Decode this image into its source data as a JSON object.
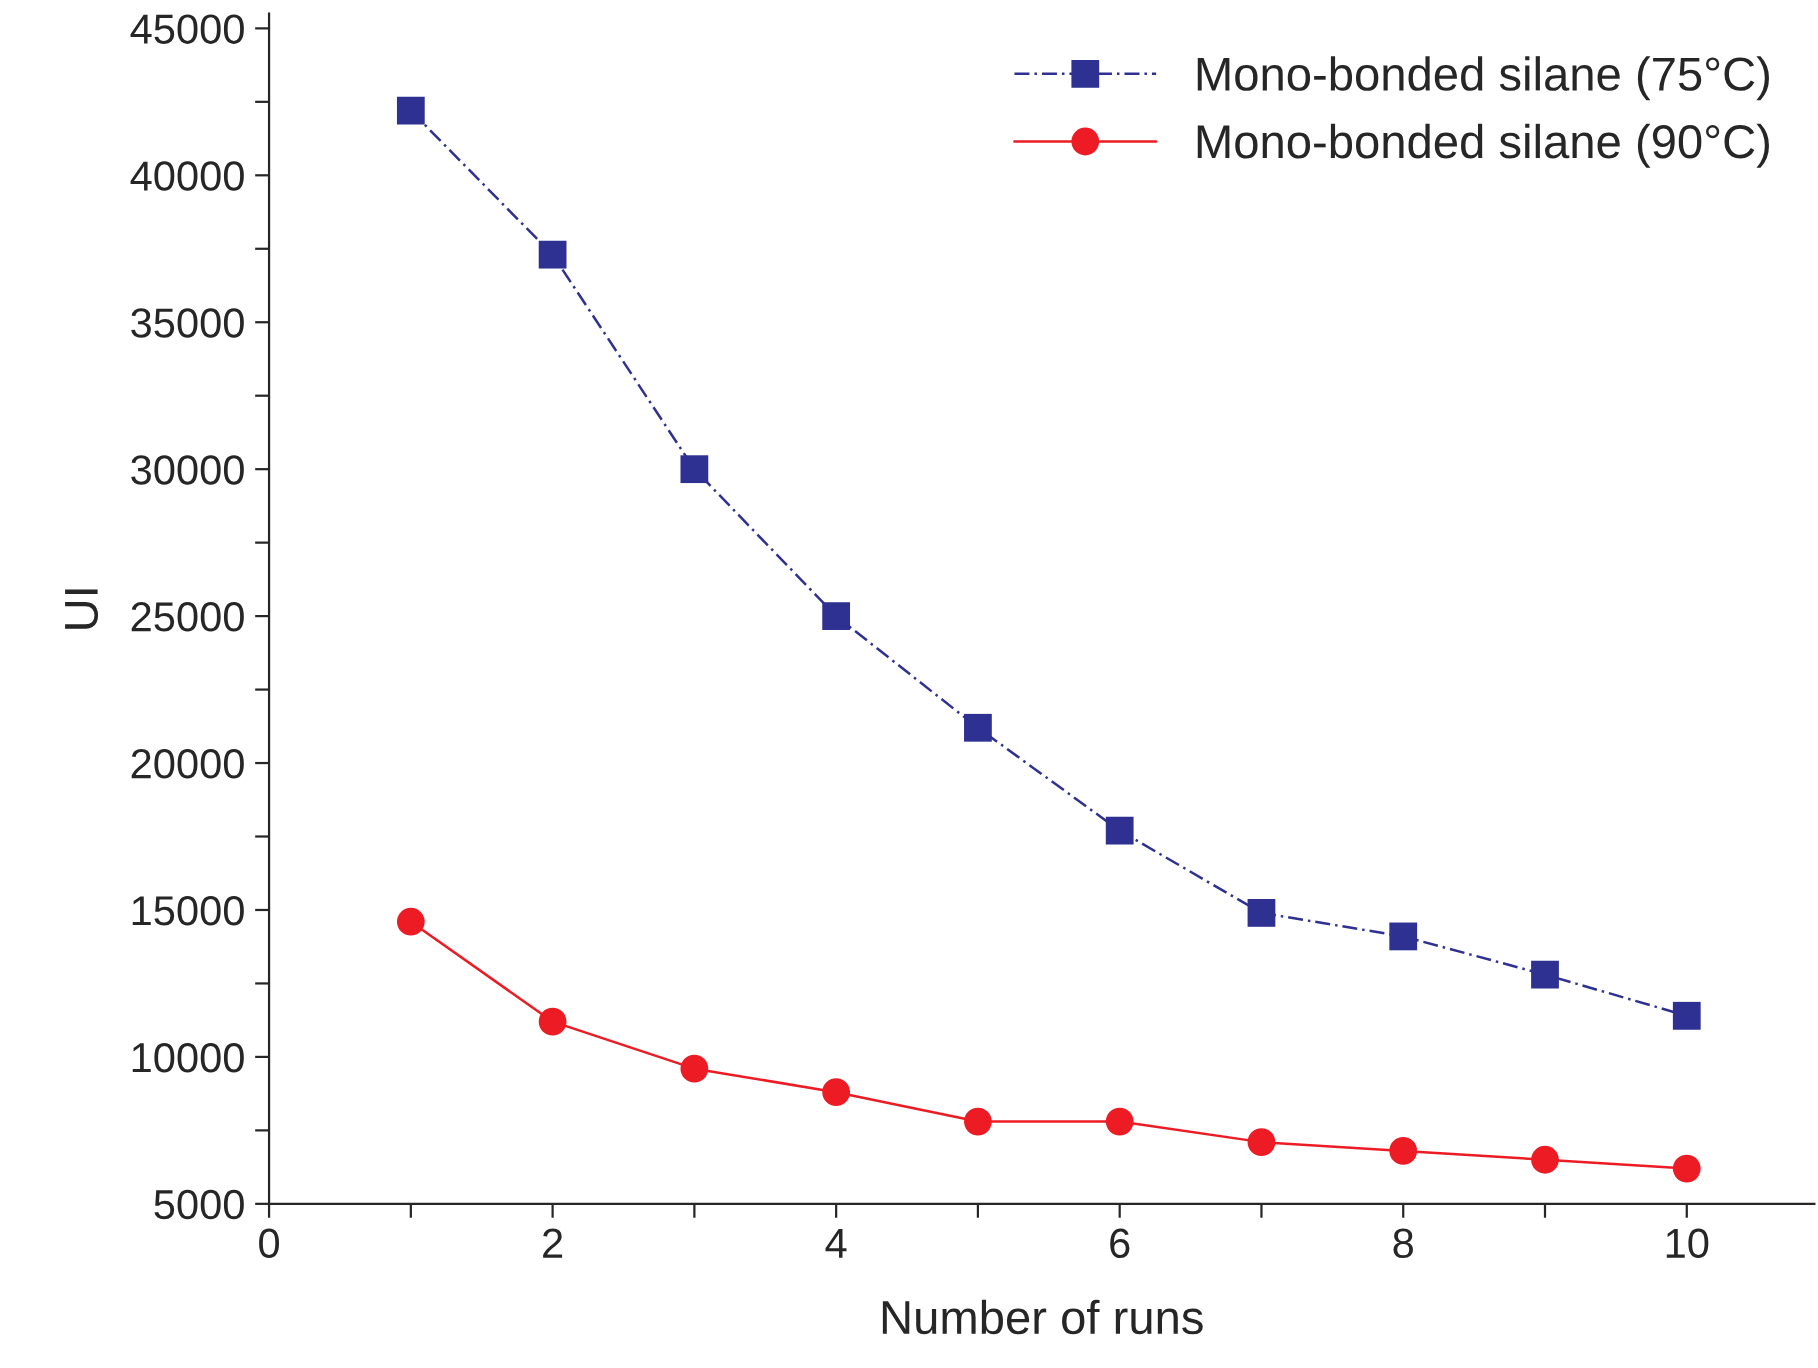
{
  "chart_data": {
    "type": "line",
    "xlabel": "Number of runs",
    "ylabel": "UI",
    "x": [
      1,
      2,
      3,
      4,
      5,
      6,
      7,
      8,
      9,
      10
    ],
    "series": [
      {
        "name": "Mono-bonded silane (75°C)",
        "color": "#2e3192",
        "marker": "square",
        "line_style": "dashed",
        "values": [
          42200,
          37300,
          30000,
          25000,
          21200,
          17700,
          14900,
          14100,
          12800,
          11400
        ]
      },
      {
        "name": "Mono-bonded silane (90°C)",
        "color": "#ed1c24",
        "marker": "circle",
        "line_style": "solid",
        "values": [
          14600,
          11200,
          9600,
          8800,
          7800,
          7800,
          7100,
          6800,
          6500,
          6200
        ]
      }
    ],
    "xlim": [
      0,
      10.9
    ],
    "ylim": [
      5000,
      45500
    ],
    "xticks": [
      0,
      {
        "value": 1,
        "label": null
      },
      2,
      {
        "value": 3,
        "label": null
      },
      4,
      {
        "value": 5,
        "label": null
      },
      6,
      {
        "value": 7,
        "label": null
      },
      8,
      {
        "value": 9,
        "label": null
      },
      10
    ],
    "yticks": [
      5000,
      {
        "value": 7500,
        "label": null
      },
      10000,
      {
        "value": 12500,
        "label": null
      },
      15000,
      {
        "value": 17500,
        "label": null
      },
      20000,
      {
        "value": 22500,
        "label": null
      },
      25000,
      {
        "value": 27500,
        "label": null
      },
      30000,
      {
        "value": 32500,
        "label": null
      },
      35000,
      {
        "value": 37500,
        "label": null
      },
      40000,
      {
        "value": 42500,
        "label": null
      },
      45000
    ],
    "grid": false,
    "legend": "top right"
  }
}
